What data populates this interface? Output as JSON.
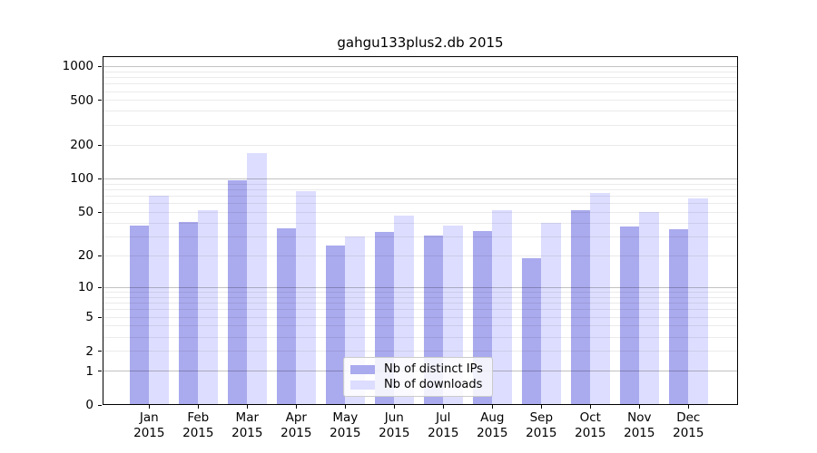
{
  "chart_data": {
    "type": "bar",
    "title": "gahgu133plus2.db 2015",
    "categories": [
      "Jan",
      "Feb",
      "Mar",
      "Apr",
      "May",
      "Jun",
      "Jul",
      "Aug",
      "Sep",
      "Oct",
      "Nov",
      "Dec"
    ],
    "year": "2015",
    "series": [
      {
        "name": "Nb of distinct IPs",
        "color": "#aaaaee",
        "values": [
          38,
          41,
          97,
          36,
          25,
          33,
          31,
          34,
          19,
          52,
          37,
          35
        ]
      },
      {
        "name": "Nb of downloads",
        "color": "#ddddff",
        "values": [
          71,
          52,
          170,
          77,
          30,
          47,
          38,
          52,
          40,
          75,
          50,
          67
        ]
      }
    ],
    "y_axis": {
      "scale": "log1p",
      "ticks": [
        0,
        1,
        2,
        5,
        10,
        20,
        50,
        100,
        200,
        500,
        1000
      ],
      "minor_gridlines": [
        2,
        3,
        4,
        5,
        6,
        7,
        8,
        9,
        20,
        30,
        40,
        50,
        60,
        70,
        80,
        90,
        200,
        300,
        400,
        500,
        600,
        700,
        800,
        900
      ],
      "major_gridlines": [
        1,
        10,
        100,
        1000
      ]
    },
    "grid": true,
    "legend_position": "bottom-center"
  }
}
